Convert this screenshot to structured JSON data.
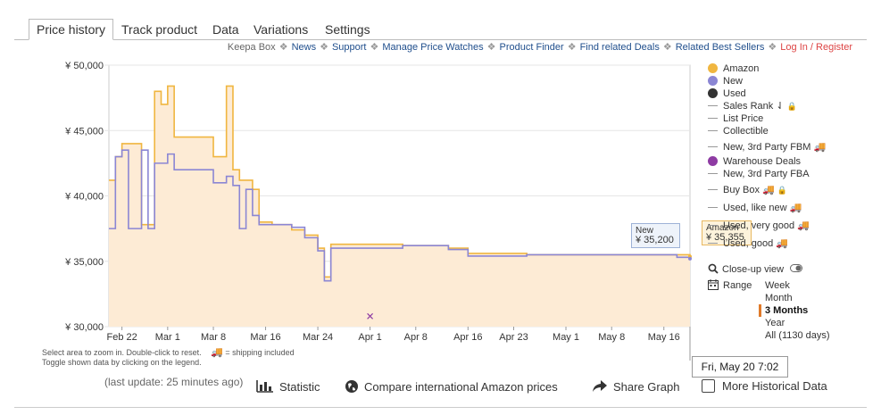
{
  "tabs": [
    "Price history",
    "Track product",
    "Data",
    "Variations",
    "Settings"
  ],
  "links": {
    "keepa_box": "Keepa Box",
    "news": "News",
    "support": "Support",
    "manage": "Manage Price Watches",
    "finder": "Product Finder",
    "deals": "Find related Deals",
    "sellers": "Related Best Sellers",
    "login": "Log In / Register",
    "separator": "❖"
  },
  "legend": {
    "amazon": "Amazon",
    "new": "New",
    "used": "Used",
    "sales_rank": "Sales Rank",
    "list_price": "List Price",
    "collectible": "Collectible",
    "new_fbm": "New, 3rd Party FBM",
    "warehouse": "Warehouse Deals",
    "new_fba": "New, 3rd Party FBA",
    "buy_box": "Buy Box",
    "used_like_new": "Used, like new",
    "used_very_good": "Used, very good",
    "used_good": "Used, good",
    "truck": "🚚",
    "sort_glyph": "⇃",
    "lock_glyph": "🔒"
  },
  "closeup": "Close-up view",
  "range": {
    "label": "Range",
    "options": [
      "Week",
      "Month",
      "3 Months",
      "Year",
      "All (1130 days)"
    ],
    "selected": "3 Months"
  },
  "notes": {
    "line1": "Select area to zoom in. Double-click to reset.",
    "shipping": "= shipping included",
    "line2": "Toggle shown data by clicking on the legend."
  },
  "tooltip": {
    "date": "Fri, May 20 7:02",
    "new_label": "New",
    "new_value": "¥ 35,200",
    "amazon_label": "Amazon",
    "amazon_value": "¥ 35,355"
  },
  "bottom": {
    "last_update": "(last update: 25 minutes ago)",
    "statistic": "Statistic",
    "compare": "Compare international Amazon prices",
    "share": "Share Graph",
    "more": "More Historical Data"
  },
  "colors": {
    "amazon": "#f0b640",
    "amazon_fill": "#fdebd5",
    "new": "#8b86d4",
    "used": "#333333",
    "warehouse": "#8e3ba3",
    "link": "#1f4e8c"
  },
  "chart_data": {
    "type": "line",
    "x_ticks": [
      "Feb 22",
      "Mar 1",
      "Mar 8",
      "Mar 16",
      "Mar 24",
      "Apr 1",
      "Apr 8",
      "Apr 16",
      "Apr 23",
      "May 1",
      "May 8",
      "May 16"
    ],
    "y_ticks": [
      "¥ 30,000",
      "¥ 35,000",
      "¥ 40,000",
      "¥ 45,000",
      "¥ 50,000"
    ],
    "ylim": [
      30000,
      50000
    ],
    "x_domain": [
      "Feb 20",
      "May 20"
    ],
    "series": [
      {
        "name": "Amazon",
        "points": [
          [
            "Feb 20",
            41200
          ],
          [
            "Feb 21",
            43000
          ],
          [
            "Feb 22",
            44000
          ],
          [
            "Feb 24",
            44000
          ],
          [
            "Feb 25",
            37800
          ],
          [
            "Feb 27",
            48000
          ],
          [
            "Feb 28",
            47000
          ],
          [
            "Mar 1",
            48400
          ],
          [
            "Mar 2",
            44500
          ],
          [
            "Mar 7",
            44500
          ],
          [
            "Mar 8",
            43000
          ],
          [
            "Mar 10",
            48400
          ],
          [
            "Mar 11",
            42000
          ],
          [
            "Mar 12",
            41200
          ],
          [
            "Mar 14",
            40500
          ],
          [
            "Mar 15",
            38000
          ],
          [
            "Mar 17",
            37800
          ],
          [
            "Mar 20",
            37400
          ],
          [
            "Mar 22",
            37000
          ],
          [
            "Mar 24",
            36000
          ],
          [
            "Mar 25",
            33800
          ],
          [
            "Mar 26",
            36300
          ],
          [
            "Apr 5",
            36300
          ],
          [
            "Apr 6",
            36200
          ],
          [
            "Apr 13",
            36000
          ],
          [
            "Apr 16",
            35600
          ],
          [
            "Apr 25",
            35500
          ],
          [
            "May 18",
            35500
          ],
          [
            "May 20",
            35355
          ]
        ]
      },
      {
        "name": "New",
        "points": [
          [
            "Feb 20",
            37500
          ],
          [
            "Feb 21",
            43000
          ],
          [
            "Feb 22",
            43500
          ],
          [
            "Feb 23",
            37500
          ],
          [
            "Feb 25",
            43500
          ],
          [
            "Feb 26",
            37500
          ],
          [
            "Feb 27",
            42500
          ],
          [
            "Mar 1",
            43200
          ],
          [
            "Mar 2",
            42000
          ],
          [
            "Mar 7",
            42000
          ],
          [
            "Mar 8",
            41000
          ],
          [
            "Mar 10",
            41500
          ],
          [
            "Mar 11",
            40800
          ],
          [
            "Mar 12",
            37500
          ],
          [
            "Mar 13",
            40500
          ],
          [
            "Mar 14",
            38500
          ],
          [
            "Mar 15",
            37800
          ],
          [
            "Mar 20",
            37600
          ],
          [
            "Mar 22",
            36800
          ],
          [
            "Mar 24",
            35800
          ],
          [
            "Mar 25",
            33500
          ],
          [
            "Mar 26",
            36000
          ],
          [
            "Apr 5",
            36000
          ],
          [
            "Apr 6",
            36200
          ],
          [
            "Apr 13",
            35900
          ],
          [
            "Apr 16",
            35400
          ],
          [
            "Apr 25",
            35500
          ],
          [
            "May 18",
            35300
          ],
          [
            "May 20",
            35200
          ]
        ]
      },
      {
        "name": "Warehouse Deals",
        "points": [
          [
            "Apr 1",
            30800
          ]
        ]
      }
    ]
  }
}
